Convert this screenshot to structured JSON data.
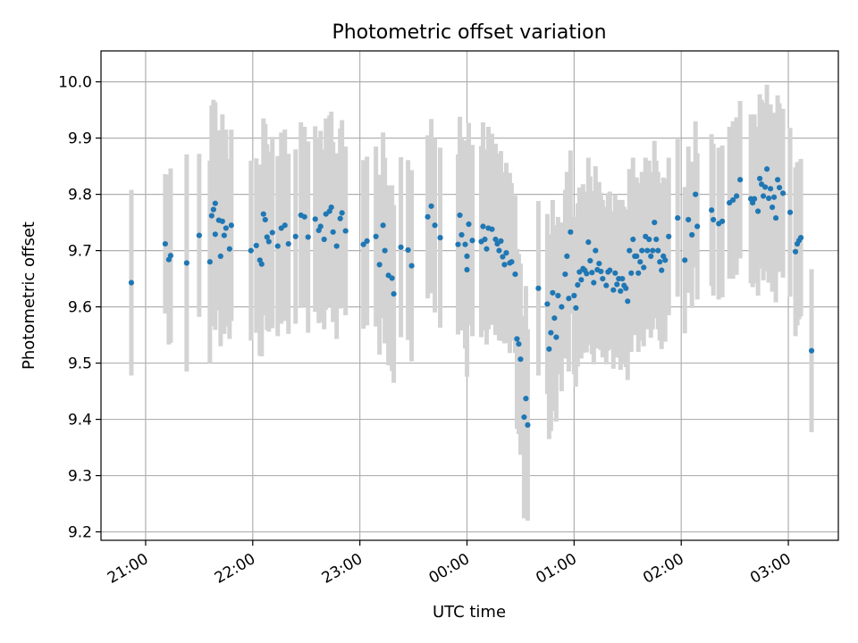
{
  "chart_data": {
    "type": "scatter",
    "title": "Photometric offset variation",
    "xlabel": "UTC time",
    "ylabel": "Photometric offset",
    "x_unit": "UTC time (hh:mm), after midnight > 24:00",
    "xlim": [
      "20:35",
      "27:28"
    ],
    "ylim": [
      9.185,
      10.055
    ],
    "xticks": [
      {
        "value": "21:00",
        "label": "21:00"
      },
      {
        "value": "22:00",
        "label": "22:00"
      },
      {
        "value": "23:00",
        "label": "23:00"
      },
      {
        "value": "24:00",
        "label": "00:00"
      },
      {
        "value": "25:00",
        "label": "01:00"
      },
      {
        "value": "26:00",
        "label": "02:00"
      },
      {
        "value": "27:00",
        "label": "03:00"
      }
    ],
    "yticks": [
      "9.2",
      "9.3",
      "9.4",
      "9.5",
      "9.6",
      "9.7",
      "9.8",
      "9.9",
      "10.0"
    ],
    "grid": true,
    "point_color": "#1f77b4",
    "errorbar_color": "#d3d3d3",
    "series": [
      {
        "columns": [
          "time",
          "offset",
          "error"
        ],
        "points": [
          [
            "20:52",
            9.643,
            0.165
          ],
          [
            "21:11",
            9.712,
            0.124
          ],
          [
            "21:13",
            9.684,
            0.151
          ],
          [
            "21:14",
            9.691,
            0.155
          ],
          [
            "21:23",
            9.678,
            0.193
          ],
          [
            "21:30",
            9.727,
            0.145
          ],
          [
            "21:36",
            9.68,
            0.18
          ],
          [
            "21:37",
            9.762,
            0.196
          ],
          [
            "21:38",
            9.773,
            0.195
          ],
          [
            "21:39",
            9.784,
            0.18
          ],
          [
            "21:39",
            9.729,
            0.17
          ],
          [
            "21:41",
            9.754,
            0.16
          ],
          [
            "21:42",
            9.69,
            0.16
          ],
          [
            "21:43",
            9.752,
            0.19
          ],
          [
            "21:44",
            9.727,
            0.175
          ],
          [
            "21:45",
            9.74,
            0.175
          ],
          [
            "21:47",
            9.703,
            0.16
          ],
          [
            "21:48",
            9.745,
            0.17
          ],
          [
            "21:59",
            9.7,
            0.16
          ],
          [
            "22:02",
            9.709,
            0.155
          ],
          [
            "22:04",
            9.683,
            0.17
          ],
          [
            "22:05",
            9.676,
            0.164
          ],
          [
            "22:06",
            9.765,
            0.17
          ],
          [
            "22:07",
            9.755,
            0.17
          ],
          [
            "22:08",
            9.724,
            0.165
          ],
          [
            "22:09",
            9.716,
            0.16
          ],
          [
            "22:11",
            9.732,
            0.17
          ],
          [
            "22:14",
            9.708,
            0.16
          ],
          [
            "22:16",
            9.74,
            0.17
          ],
          [
            "22:18",
            9.745,
            0.17
          ],
          [
            "22:20",
            9.712,
            0.16
          ],
          [
            "22:24",
            9.725,
            0.155
          ],
          [
            "22:27",
            9.763,
            0.165
          ],
          [
            "22:29",
            9.76,
            0.16
          ],
          [
            "22:31",
            9.724,
            0.17
          ],
          [
            "22:35",
            9.756,
            0.165
          ],
          [
            "22:37",
            9.736,
            0.165
          ],
          [
            "22:38",
            9.743,
            0.17
          ],
          [
            "22:40",
            9.72,
            0.16
          ],
          [
            "22:41",
            9.765,
            0.17
          ],
          [
            "22:43",
            9.77,
            0.17
          ],
          [
            "22:44",
            9.777,
            0.17
          ],
          [
            "22:45",
            9.733,
            0.16
          ],
          [
            "22:47",
            9.708,
            0.165
          ],
          [
            "22:49",
            9.757,
            0.16
          ],
          [
            "22:50",
            9.767,
            0.165
          ],
          [
            "22:52",
            9.735,
            0.15
          ],
          [
            "23:02",
            9.711,
            0.15
          ],
          [
            "23:04",
            9.717,
            0.15
          ],
          [
            "23:09",
            9.725,
            0.16
          ],
          [
            "23:11",
            9.675,
            0.16
          ],
          [
            "23:13",
            9.745,
            0.165
          ],
          [
            "23:14",
            9.7,
            0.165
          ],
          [
            "23:16",
            9.656,
            0.16
          ],
          [
            "23:18",
            9.651,
            0.165
          ],
          [
            "23:19",
            9.623,
            0.158
          ],
          [
            "23:23",
            9.706,
            0.16
          ],
          [
            "23:27",
            9.701,
            0.16
          ],
          [
            "23:29",
            9.673,
            0.17
          ],
          [
            "23:38",
            9.76,
            0.145
          ],
          [
            "23:40",
            9.779,
            0.155
          ],
          [
            "23:42",
            9.745,
            0.155
          ],
          [
            "23:45",
            9.723,
            0.16
          ],
          [
            "23:55",
            9.711,
            0.16
          ],
          [
            "23:56",
            9.763,
            0.175
          ],
          [
            "23:57",
            9.728,
            0.17
          ],
          [
            "23:59",
            9.711,
            0.185
          ],
          [
            "24:00",
            9.666,
            0.19
          ],
          [
            "24:00",
            9.69,
            0.18
          ],
          [
            "24:01",
            9.747,
            0.18
          ],
          [
            "24:03",
            9.718,
            0.17
          ],
          [
            "24:08",
            9.716,
            0.17
          ],
          [
            "24:09",
            9.743,
            0.185
          ],
          [
            "24:10",
            9.72,
            0.16
          ],
          [
            "24:11",
            9.703,
            0.17
          ],
          [
            "24:12",
            9.74,
            0.18
          ],
          [
            "24:14",
            9.738,
            0.17
          ],
          [
            "24:16",
            9.72,
            0.17
          ],
          [
            "24:17",
            9.712,
            0.16
          ],
          [
            "24:18",
            9.7,
            0.16
          ],
          [
            "24:19",
            9.717,
            0.16
          ],
          [
            "24:20",
            9.689,
            0.15
          ],
          [
            "24:21",
            9.675,
            0.14
          ],
          [
            "24:22",
            9.696,
            0.16
          ],
          [
            "24:24",
            9.678,
            0.16
          ],
          [
            "24:25",
            9.68,
            0.14
          ],
          [
            "24:27",
            9.658,
            0.14
          ],
          [
            "24:28",
            9.543,
            0.16
          ],
          [
            "24:29",
            9.534,
            0.16
          ],
          [
            "24:30",
            9.507,
            0.17
          ],
          [
            "24:32",
            9.404,
            0.18
          ],
          [
            "24:33",
            9.437,
            0.2
          ],
          [
            "24:34",
            9.39,
            0.17
          ],
          [
            "24:40",
            9.633,
            0.155
          ],
          [
            "24:45",
            9.605,
            0.16
          ],
          [
            "24:46",
            9.525,
            0.16
          ],
          [
            "24:47",
            9.554,
            0.175
          ],
          [
            "24:48",
            9.625,
            0.165
          ],
          [
            "24:49",
            9.58,
            0.165
          ],
          [
            "24:50",
            9.546,
            0.15
          ],
          [
            "24:51",
            9.62,
            0.14
          ],
          [
            "24:53",
            9.6,
            0.15
          ],
          [
            "24:55",
            9.658,
            0.15
          ],
          [
            "24:56",
            9.69,
            0.15
          ],
          [
            "24:57",
            9.615,
            0.13
          ],
          [
            "24:58",
            9.733,
            0.145
          ],
          [
            "25:00",
            9.62,
            0.14
          ],
          [
            "25:01",
            9.598,
            0.14
          ],
          [
            "25:02",
            9.639,
            0.145
          ],
          [
            "25:03",
            9.662,
            0.15
          ],
          [
            "25:04",
            9.648,
            0.14
          ],
          [
            "25:05",
            9.668,
            0.15
          ],
          [
            "25:06",
            9.665,
            0.14
          ],
          [
            "25:07",
            9.659,
            0.14
          ],
          [
            "25:08",
            9.715,
            0.15
          ],
          [
            "25:09",
            9.682,
            0.15
          ],
          [
            "25:10",
            9.661,
            0.145
          ],
          [
            "25:11",
            9.643,
            0.145
          ],
          [
            "25:12",
            9.7,
            0.15
          ],
          [
            "25:13",
            9.666,
            0.14
          ],
          [
            "25:14",
            9.677,
            0.145
          ],
          [
            "25:15",
            9.663,
            0.14
          ],
          [
            "25:16",
            9.65,
            0.14
          ],
          [
            "25:18",
            9.638,
            0.14
          ],
          [
            "25:19",
            9.662,
            0.14
          ],
          [
            "25:20",
            9.665,
            0.14
          ],
          [
            "25:22",
            9.63,
            0.14
          ],
          [
            "25:23",
            9.66,
            0.14
          ],
          [
            "25:24",
            9.64,
            0.13
          ],
          [
            "25:25",
            9.65,
            0.14
          ],
          [
            "25:26",
            9.628,
            0.14
          ],
          [
            "25:27",
            9.65,
            0.14
          ],
          [
            "25:28",
            9.638,
            0.14
          ],
          [
            "25:29",
            9.633,
            0.14
          ],
          [
            "25:30",
            9.61,
            0.14
          ],
          [
            "25:31",
            9.7,
            0.145
          ],
          [
            "25:32",
            9.66,
            0.14
          ],
          [
            "25:33",
            9.72,
            0.145
          ],
          [
            "25:34",
            9.69,
            0.14
          ],
          [
            "25:35",
            9.69,
            0.14
          ],
          [
            "25:36",
            9.66,
            0.14
          ],
          [
            "25:37",
            9.68,
            0.14
          ],
          [
            "25:38",
            9.7,
            0.14
          ],
          [
            "25:39",
            9.67,
            0.14
          ],
          [
            "25:40",
            9.725,
            0.14
          ],
          [
            "25:41",
            9.7,
            0.14
          ],
          [
            "25:42",
            9.72,
            0.14
          ],
          [
            "25:43",
            9.69,
            0.145
          ],
          [
            "25:44",
            9.7,
            0.14
          ],
          [
            "25:45",
            9.75,
            0.145
          ],
          [
            "25:46",
            9.72,
            0.14
          ],
          [
            "25:47",
            9.7,
            0.14
          ],
          [
            "25:48",
            9.68,
            0.14
          ],
          [
            "25:49",
            9.665,
            0.14
          ],
          [
            "25:50",
            9.69,
            0.14
          ],
          [
            "25:51",
            9.683,
            0.145
          ],
          [
            "25:53",
            9.725,
            0.14
          ],
          [
            "25:58",
            9.758,
            0.14
          ],
          [
            "26:02",
            9.683,
            0.13
          ],
          [
            "26:04",
            9.755,
            0.13
          ],
          [
            "26:06",
            9.728,
            0.13
          ],
          [
            "26:08",
            9.8,
            0.13
          ],
          [
            "26:09",
            9.743,
            0.13
          ],
          [
            "26:17",
            9.772,
            0.135
          ],
          [
            "26:18",
            9.755,
            0.135
          ],
          [
            "26:21",
            9.748,
            0.135
          ],
          [
            "26:23",
            9.752,
            0.135
          ],
          [
            "26:27",
            9.785,
            0.135
          ],
          [
            "26:29",
            9.79,
            0.14
          ],
          [
            "26:31",
            9.797,
            0.14
          ],
          [
            "26:33",
            9.826,
            0.14
          ],
          [
            "26:39",
            9.792,
            0.15
          ],
          [
            "26:40",
            9.785,
            0.15
          ],
          [
            "26:41",
            9.792,
            0.15
          ],
          [
            "26:43",
            9.77,
            0.15
          ],
          [
            "26:44",
            9.828,
            0.15
          ],
          [
            "26:45",
            9.818,
            0.15
          ],
          [
            "26:46",
            9.797,
            0.15
          ],
          [
            "26:47",
            9.813,
            0.15
          ],
          [
            "26:48",
            9.845,
            0.15
          ],
          [
            "26:49",
            9.793,
            0.15
          ],
          [
            "26:50",
            9.81,
            0.15
          ],
          [
            "26:51",
            9.777,
            0.15
          ],
          [
            "26:52",
            9.795,
            0.15
          ],
          [
            "26:53",
            9.758,
            0.15
          ],
          [
            "26:54",
            9.826,
            0.15
          ],
          [
            "26:55",
            9.812,
            0.15
          ],
          [
            "26:57",
            9.802,
            0.15
          ],
          [
            "27:01",
            9.768,
            0.15
          ],
          [
            "27:04",
            9.698,
            0.15
          ],
          [
            "27:05",
            9.712,
            0.145
          ],
          [
            "27:06",
            9.718,
            0.14
          ],
          [
            "27:07",
            9.723,
            0.14
          ],
          [
            "27:13",
            9.522,
            0.145
          ]
        ]
      }
    ]
  }
}
